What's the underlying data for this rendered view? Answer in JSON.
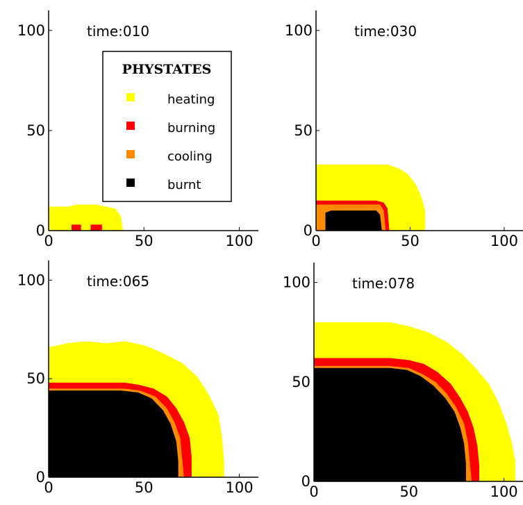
{
  "colors": {
    "heating": "#ffff00",
    "burning": "#ff0000",
    "cooling": "#ff8c00",
    "burnt": "#000000",
    "axes": "#000000",
    "background": "#ffffff"
  },
  "chart_data": [
    {
      "type": "heatmap",
      "title": "time:010",
      "xlim": [
        0,
        110
      ],
      "ylim": [
        0,
        110
      ],
      "xticks": [
        0,
        50,
        100
      ],
      "yticks": [
        0,
        50,
        100
      ],
      "grid": false,
      "regions": [
        {
          "state": "heating",
          "profile": [
            [
              0,
              12
            ],
            [
              5,
              12
            ],
            [
              10,
              12
            ],
            [
              15,
              13
            ],
            [
              20,
              13
            ],
            [
              25,
              13
            ],
            [
              30,
              12
            ],
            [
              35,
              11
            ],
            [
              38,
              7
            ],
            [
              39,
              0
            ]
          ]
        },
        {
          "state": "burning",
          "rects": [
            [
              12,
              0,
              17,
              3
            ],
            [
              22,
              0,
              28,
              3
            ]
          ]
        }
      ]
    },
    {
      "type": "heatmap",
      "title": "time:030",
      "xlim": [
        0,
        110
      ],
      "ylim": [
        0,
        110
      ],
      "xticks": [
        0,
        50,
        100
      ],
      "yticks": [
        0,
        50,
        100
      ],
      "grid": false,
      "regions": [
        {
          "state": "heating",
          "profile": [
            [
              0,
              33
            ],
            [
              10,
              33
            ],
            [
              20,
              33
            ],
            [
              30,
              33
            ],
            [
              38,
              33
            ],
            [
              44,
              31
            ],
            [
              49,
              28
            ],
            [
              53,
              23
            ],
            [
              56,
              17
            ],
            [
              58,
              10
            ],
            [
              58,
              0
            ]
          ]
        },
        {
          "state": "burning",
          "profile": [
            [
              0,
              15
            ],
            [
              8,
              15
            ],
            [
              20,
              15
            ],
            [
              32,
              15
            ],
            [
              36,
              14
            ],
            [
              38,
              11
            ],
            [
              39,
              0
            ]
          ]
        },
        {
          "state": "cooling",
          "profile": [
            [
              0,
              13
            ],
            [
              10,
              13
            ],
            [
              34,
              13
            ],
            [
              36,
              10
            ],
            [
              37,
              0
            ]
          ]
        },
        {
          "state": "burnt",
          "profile": [
            [
              0,
              0
            ],
            [
              5,
              0
            ],
            [
              5,
              9
            ],
            [
              8,
              10
            ],
            [
              20,
              10
            ],
            [
              32,
              10
            ],
            [
              34,
              8
            ],
            [
              35,
              0
            ]
          ]
        }
      ]
    },
    {
      "type": "heatmap",
      "title": "time:065",
      "xlim": [
        0,
        110
      ],
      "ylim": [
        0,
        110
      ],
      "xticks": [
        0,
        50,
        100
      ],
      "yticks": [
        0,
        50,
        100
      ],
      "grid": false,
      "regions": [
        {
          "state": "heating",
          "profile": [
            [
              0,
              66
            ],
            [
              10,
              68
            ],
            [
              20,
              69
            ],
            [
              30,
              68
            ],
            [
              40,
              69
            ],
            [
              50,
              67
            ],
            [
              60,
              63
            ],
            [
              70,
              58
            ],
            [
              78,
              51
            ],
            [
              84,
              42
            ],
            [
              89,
              32
            ],
            [
              91,
              20
            ],
            [
              92,
              8
            ],
            [
              92,
              0
            ]
          ]
        },
        {
          "state": "burning",
          "profile": [
            [
              0,
              48
            ],
            [
              10,
              48
            ],
            [
              20,
              48
            ],
            [
              30,
              48
            ],
            [
              40,
              48
            ],
            [
              47,
              47
            ],
            [
              55,
              45
            ],
            [
              62,
              41
            ],
            [
              67,
              35
            ],
            [
              71,
              28
            ],
            [
              74,
              20
            ],
            [
              75,
              10
            ],
            [
              75,
              0
            ]
          ]
        },
        {
          "state": "cooling",
          "profile": [
            [
              0,
              45
            ],
            [
              20,
              45
            ],
            [
              40,
              45
            ],
            [
              48,
              44
            ],
            [
              56,
              41
            ],
            [
              62,
              35
            ],
            [
              66,
              28
            ],
            [
              69,
              20
            ],
            [
              70,
              10
            ],
            [
              71,
              0
            ]
          ]
        },
        {
          "state": "burnt",
          "profile": [
            [
              0,
              44
            ],
            [
              20,
              44
            ],
            [
              38,
              44
            ],
            [
              47,
              43
            ],
            [
              54,
              40
            ],
            [
              60,
              34
            ],
            [
              64,
              27
            ],
            [
              67,
              18
            ],
            [
              68,
              8
            ],
            [
              68,
              0
            ]
          ]
        }
      ]
    },
    {
      "type": "heatmap",
      "title": "time:078",
      "xlim": [
        0,
        110
      ],
      "ylim": [
        0,
        110
      ],
      "xticks": [
        0,
        50,
        100
      ],
      "yticks": [
        0,
        50,
        100
      ],
      "grid": false,
      "regions": [
        {
          "state": "heating",
          "profile": [
            [
              0,
              80
            ],
            [
              10,
              80
            ],
            [
              20,
              80
            ],
            [
              30,
              80
            ],
            [
              40,
              80
            ],
            [
              50,
              78
            ],
            [
              60,
              75
            ],
            [
              70,
              70
            ],
            [
              78,
              64
            ],
            [
              85,
              57
            ],
            [
              92,
              49
            ],
            [
              97,
              40
            ],
            [
              101,
              30
            ],
            [
              104,
              20
            ],
            [
              106,
              10
            ],
            [
              106,
              0
            ]
          ]
        },
        {
          "state": "burning",
          "profile": [
            [
              0,
              62
            ],
            [
              20,
              62
            ],
            [
              40,
              62
            ],
            [
              50,
              61
            ],
            [
              58,
              59
            ],
            [
              65,
              55
            ],
            [
              72,
              49
            ],
            [
              77,
              42
            ],
            [
              81,
              35
            ],
            [
              84,
              27
            ],
            [
              86,
              18
            ],
            [
              87,
              8
            ],
            [
              87,
              0
            ]
          ]
        },
        {
          "state": "cooling",
          "profile": [
            [
              0,
              58
            ],
            [
              20,
              58
            ],
            [
              40,
              58
            ],
            [
              50,
              57
            ],
            [
              57,
              54
            ],
            [
              64,
              50
            ],
            [
              70,
              44
            ],
            [
              75,
              37
            ],
            [
              79,
              29
            ],
            [
              81,
              20
            ],
            [
              82,
              10
            ],
            [
              83,
              0
            ]
          ]
        },
        {
          "state": "burnt",
          "profile": [
            [
              0,
              57
            ],
            [
              20,
              57
            ],
            [
              40,
              57
            ],
            [
              49,
              56
            ],
            [
              56,
              53
            ],
            [
              63,
              48
            ],
            [
              69,
              42
            ],
            [
              74,
              35
            ],
            [
              77,
              27
            ],
            [
              79,
              19
            ],
            [
              80,
              9
            ],
            [
              80,
              0
            ]
          ]
        }
      ]
    }
  ],
  "legend": {
    "title": "PHYSTATES",
    "placement": "inside first panel",
    "entries": [
      {
        "key": "heating",
        "label": "heating"
      },
      {
        "key": "burning",
        "label": "burning"
      },
      {
        "key": "cooling",
        "label": "cooling"
      },
      {
        "key": "burnt",
        "label": "burnt"
      }
    ]
  }
}
